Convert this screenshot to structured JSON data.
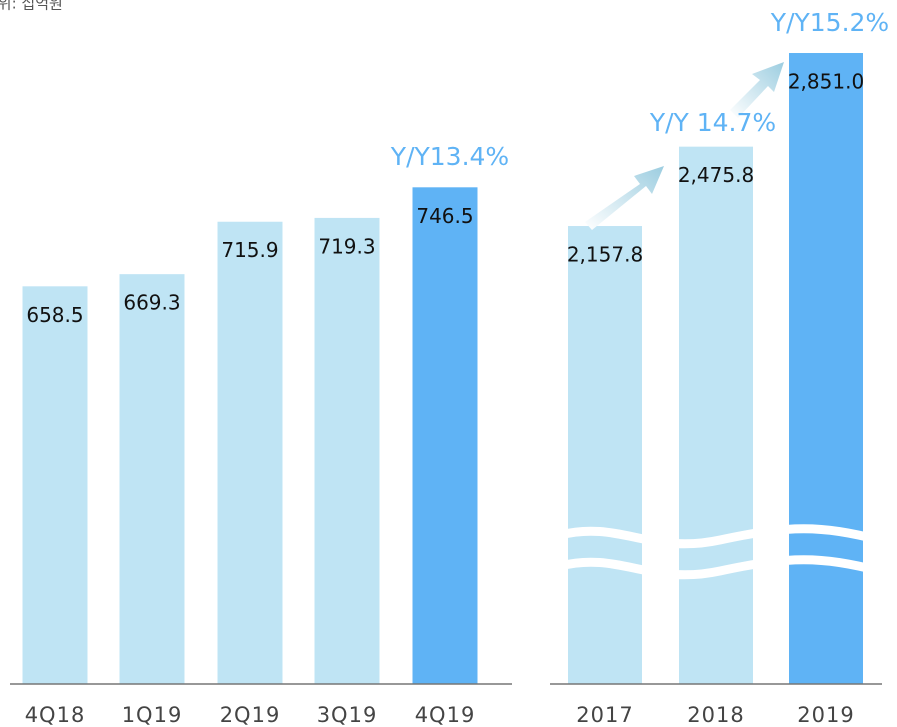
{
  "unit": "단위: 십억원",
  "chart_data": [
    {
      "type": "bar",
      "categories": [
        "4Q18",
        "1Q19",
        "2Q19",
        "3Q19",
        "4Q19"
      ],
      "values": [
        658.5,
        669.3,
        715.9,
        719.3,
        746.5
      ],
      "colors": [
        "#bfe4f4",
        "#bfe4f4",
        "#bfe4f4",
        "#bfe4f4",
        "#5fb3f5"
      ],
      "ylim": [
        305,
        800
      ],
      "annotations": [
        "Y/Y13.4%"
      ]
    },
    {
      "type": "bar",
      "categories": [
        "2017",
        "2018",
        "2019"
      ],
      "values": [
        2157.8,
        2475.8,
        2851.0
      ],
      "value_labels": [
        "2,157.8",
        "2,475.8",
        "2,851.0"
      ],
      "colors": [
        "#bfe4f4",
        "#bfe4f4",
        "#5fb3f5"
      ],
      "ylim": [
        323,
        3000
      ],
      "annotations": [
        "Y/Y 14.7%",
        "Y/Y15.2%"
      ]
    }
  ]
}
